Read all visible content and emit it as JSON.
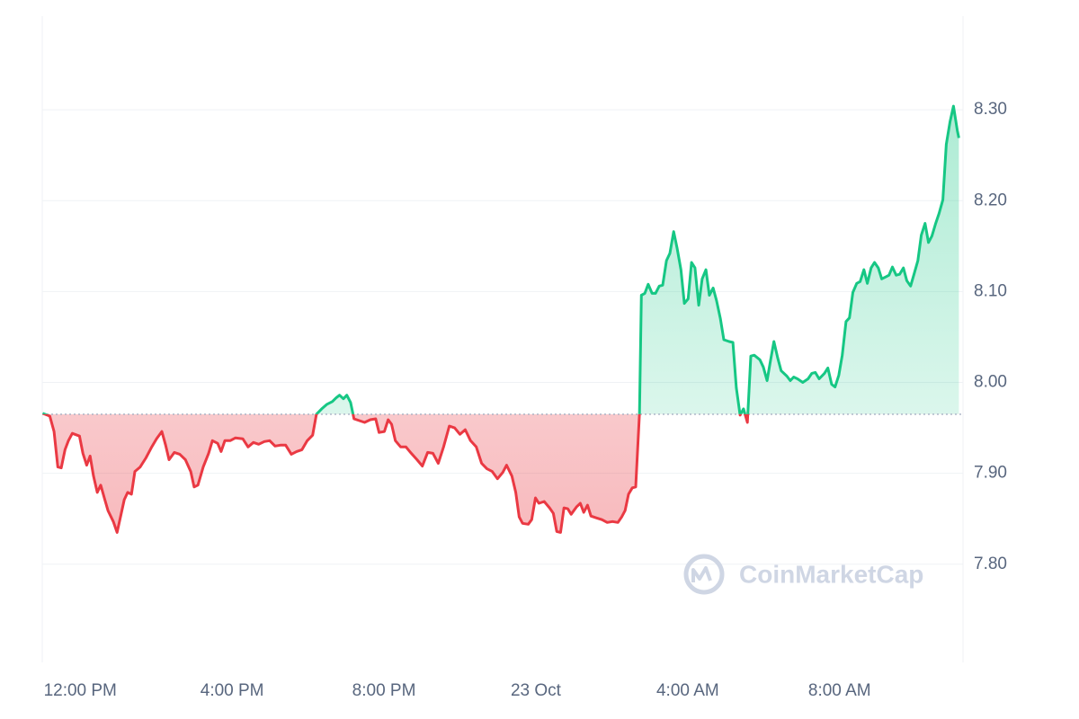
{
  "chart_data": {
    "type": "baseline-line",
    "x": [
      -0.99,
      -0.8,
      -0.69,
      -0.59,
      -0.5,
      -0.4,
      -0.31,
      -0.21,
      -0.02,
      0.07,
      0.17,
      0.26,
      0.35,
      0.45,
      0.54,
      0.64,
      0.73,
      0.87,
      0.97,
      1.06,
      1.16,
      1.25,
      1.35,
      1.44,
      1.58,
      1.73,
      1.87,
      2.01,
      2.15,
      2.25,
      2.34,
      2.48,
      2.62,
      2.77,
      2.91,
      3.0,
      3.1,
      3.24,
      3.38,
      3.48,
      3.62,
      3.71,
      3.81,
      3.95,
      4.09,
      4.28,
      4.42,
      4.56,
      4.7,
      4.85,
      4.99,
      5.13,
      5.27,
      5.41,
      5.56,
      5.7,
      5.84,
      5.98,
      6.12,
      6.22,
      6.36,
      6.5,
      6.64,
      6.74,
      6.83,
      6.93,
      7.02,
      7.12,
      7.21,
      7.35,
      7.49,
      7.64,
      7.78,
      7.87,
      8.01,
      8.11,
      8.2,
      8.3,
      8.44,
      8.58,
      8.72,
      8.87,
      9.01,
      9.15,
      9.29,
      9.43,
      9.57,
      9.72,
      9.86,
      10.0,
      10.14,
      10.28,
      10.43,
      10.57,
      10.71,
      10.85,
      10.99,
      11.13,
      11.23,
      11.37,
      11.47,
      11.56,
      11.65,
      11.8,
      11.89,
      11.99,
      12.08,
      12.22,
      12.36,
      12.46,
      12.55,
      12.65,
      12.74,
      12.84,
      12.93,
      13.07,
      13.17,
      13.26,
      13.36,
      13.45,
      13.59,
      13.74,
      13.88,
      14.02,
      14.16,
      14.26,
      14.35,
      14.44,
      14.54,
      14.63,
      14.73,
      14.78,
      14.87,
      14.96,
      15.06,
      15.15,
      15.25,
      15.34,
      15.44,
      15.53,
      15.63,
      15.72,
      15.82,
      15.91,
      16.01,
      16.1,
      16.19,
      16.29,
      16.38,
      16.48,
      16.57,
      16.67,
      16.76,
      16.86,
      16.95,
      17.09,
      17.19,
      17.28,
      17.38,
      17.47,
      17.57,
      17.66,
      17.75,
      17.9,
      17.99,
      18.09,
      18.18,
      18.27,
      18.37,
      18.46,
      18.61,
      18.7,
      18.79,
      18.89,
      19.03,
      19.17,
      19.27,
      19.36,
      19.46,
      19.6,
      19.69,
      19.79,
      19.88,
      19.98,
      20.07,
      20.17,
      20.26,
      20.35,
      20.45,
      20.54,
      20.64,
      20.73,
      20.83,
      20.92,
      21.02,
      21.11,
      21.21,
      21.3,
      21.39,
      21.49,
      21.58,
      21.68,
      21.77,
      21.87,
      21.96,
      22.06,
      22.15,
      22.25,
      22.34,
      22.43,
      22.53,
      22.62,
      22.72,
      22.81,
      22.91,
      23.0,
      23.1,
      23.14
    ],
    "values": [
      7.966,
      7.963,
      7.946,
      7.907,
      7.906,
      7.926,
      7.936,
      7.944,
      7.941,
      7.922,
      7.909,
      7.919,
      7.897,
      7.879,
      7.887,
      7.872,
      7.859,
      7.847,
      7.835,
      7.852,
      7.871,
      7.879,
      7.877,
      7.902,
      7.907,
      7.917,
      7.928,
      7.938,
      7.946,
      7.931,
      7.915,
      7.923,
      7.921,
      7.915,
      7.902,
      7.885,
      7.887,
      7.907,
      7.922,
      7.936,
      7.933,
      7.924,
      7.936,
      7.936,
      7.939,
      7.938,
      7.929,
      7.934,
      7.932,
      7.935,
      7.936,
      7.93,
      7.931,
      7.931,
      7.921,
      7.924,
      7.926,
      7.936,
      7.942,
      7.965,
      7.971,
      7.976,
      7.979,
      7.983,
      7.986,
      7.982,
      7.986,
      7.978,
      7.96,
      7.958,
      7.956,
      7.959,
      7.96,
      7.945,
      7.946,
      7.959,
      7.954,
      7.936,
      7.929,
      7.929,
      7.922,
      7.915,
      7.908,
      7.923,
      7.922,
      7.911,
      7.929,
      7.952,
      7.95,
      7.943,
      7.948,
      7.936,
      7.929,
      7.911,
      7.905,
      7.902,
      7.894,
      7.901,
      7.909,
      7.897,
      7.879,
      7.852,
      7.845,
      7.844,
      7.849,
      7.873,
      7.867,
      7.869,
      7.862,
      7.856,
      7.836,
      7.835,
      7.862,
      7.861,
      7.855,
      7.863,
      7.867,
      7.857,
      7.865,
      7.853,
      7.851,
      7.849,
      7.846,
      7.847,
      7.846,
      7.852,
      7.859,
      7.877,
      7.884,
      7.885,
      7.966,
      8.096,
      8.098,
      8.108,
      8.098,
      8.098,
      8.106,
      8.107,
      8.134,
      8.142,
      8.166,
      8.148,
      8.124,
      8.087,
      8.092,
      8.132,
      8.126,
      8.085,
      8.114,
      8.124,
      8.096,
      8.104,
      8.09,
      8.07,
      8.047,
      8.045,
      8.044,
      7.994,
      7.964,
      7.971,
      7.956,
      8.029,
      8.03,
      8.025,
      8.017,
      8.002,
      8.024,
      8.045,
      8.027,
      8.013,
      8.007,
      8.002,
      8.006,
      8.004,
      8,
      8.004,
      8.01,
      8.011,
      8.004,
      8.01,
      8.016,
      7.998,
      7.995,
      8.008,
      8.03,
      8.067,
      8.071,
      8.099,
      8.109,
      8.111,
      8.124,
      8.109,
      8.126,
      8.132,
      8.126,
      8.114,
      8.116,
      8.118,
      8.127,
      8.118,
      8.119,
      8.126,
      8.112,
      8.106,
      8.119,
      8.134,
      8.162,
      8.175,
      8.154,
      8.161,
      8.175,
      8.186,
      8.201,
      8.262,
      8.287,
      8.304,
      8.277,
      8.269
    ],
    "baseline": 7.965,
    "up_color": "#16c784",
    "down_color": "#ea3943",
    "xlim": [
      -1,
      23.25
    ],
    "ylim": [
      7.692,
      8.403
    ],
    "xticks": [
      {
        "value": 0,
        "label": "12:00 PM"
      },
      {
        "value": 4,
        "label": "4:00 PM"
      },
      {
        "value": 8,
        "label": "8:00 PM"
      },
      {
        "value": 12,
        "label": "23 Oct"
      },
      {
        "value": 16,
        "label": "4:00 AM"
      },
      {
        "value": 20,
        "label": "8:00 AM"
      }
    ],
    "yticks": [
      {
        "value": 7.8,
        "label": "7.80"
      },
      {
        "value": 7.9,
        "label": "7.90"
      },
      {
        "value": 8.0,
        "label": "8.00"
      },
      {
        "value": 8.1,
        "label": "8.10"
      },
      {
        "value": 8.2,
        "label": "8.20"
      },
      {
        "value": 8.3,
        "label": "8.30"
      }
    ],
    "grid": true,
    "watermark": "CoinMarketCap"
  }
}
